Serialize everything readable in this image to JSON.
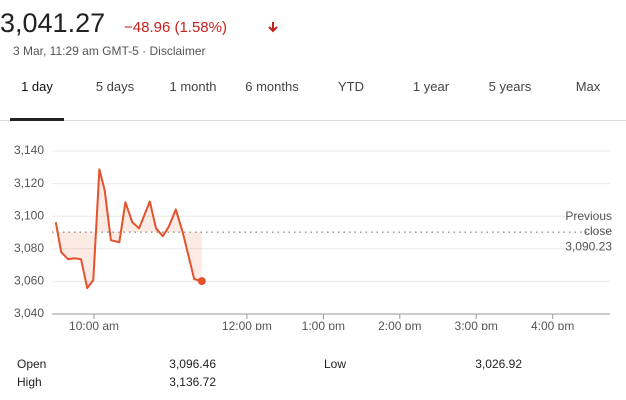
{
  "header": {
    "price": "3,041.27",
    "change": "−48.96 (1.58%)",
    "subtitle": "3 Mar, 11:29 am GMT-5 · Disclaimer"
  },
  "tabs": [
    "1 day",
    "5 days",
    "1 month",
    "6 months",
    "YTD",
    "1 year",
    "5 years",
    "Max"
  ],
  "chart_data": {
    "type": "line",
    "x": [
      9.5,
      9.57,
      9.66,
      9.74,
      9.83,
      9.91,
      9.99,
      10.07,
      10.14,
      10.22,
      10.33,
      10.41,
      10.5,
      10.59,
      10.73,
      10.81,
      10.9,
      10.98,
      11.07,
      11.16,
      11.31,
      11.41
    ],
    "series": [
      {
        "color": "#e4522b",
        "values": [
          3096.3,
          3077.9,
          3073.6,
          3074.2,
          3073.6,
          3055.9,
          3060.8,
          3128.7,
          3115.8,
          3085.3,
          3084,
          3108.5,
          3096.3,
          3092.6,
          3109,
          3092.6,
          3087.7,
          3093.8,
          3104.2,
          3090.1,
          3061.4,
          3060.2
        ]
      }
    ],
    "xlim": [
      9.45,
      16.75
    ],
    "xticks": [
      {
        "value": 10,
        "label": "10:00 am"
      },
      {
        "value": 12,
        "label": "12:00 pm"
      },
      {
        "value": 13,
        "label": "1:00 pm"
      },
      {
        "value": 14,
        "label": "2:00 pm"
      },
      {
        "value": 15,
        "label": "3:00 pm"
      },
      {
        "value": 16,
        "label": "4:00 pm"
      }
    ],
    "ylim": [
      3040,
      3140
    ],
    "yticks": [
      {
        "value": 3040,
        "label": "3,040"
      },
      {
        "value": 3060,
        "label": "3,060"
      },
      {
        "value": 3080,
        "label": "3,080"
      },
      {
        "value": 3100,
        "label": "3,100"
      },
      {
        "value": 3120,
        "label": "3,120"
      },
      {
        "value": 3140,
        "label": "3,140"
      }
    ],
    "grid": true,
    "reference_line": {
      "label": "Previous close",
      "value": 3090.23,
      "value_label": "3,090.23"
    }
  },
  "stats": [
    {
      "label": "Open",
      "value": "3,096.46"
    },
    {
      "label": "High",
      "value": "3,136.72"
    },
    {
      "label": "Low",
      "value": "3,026.92"
    }
  ]
}
